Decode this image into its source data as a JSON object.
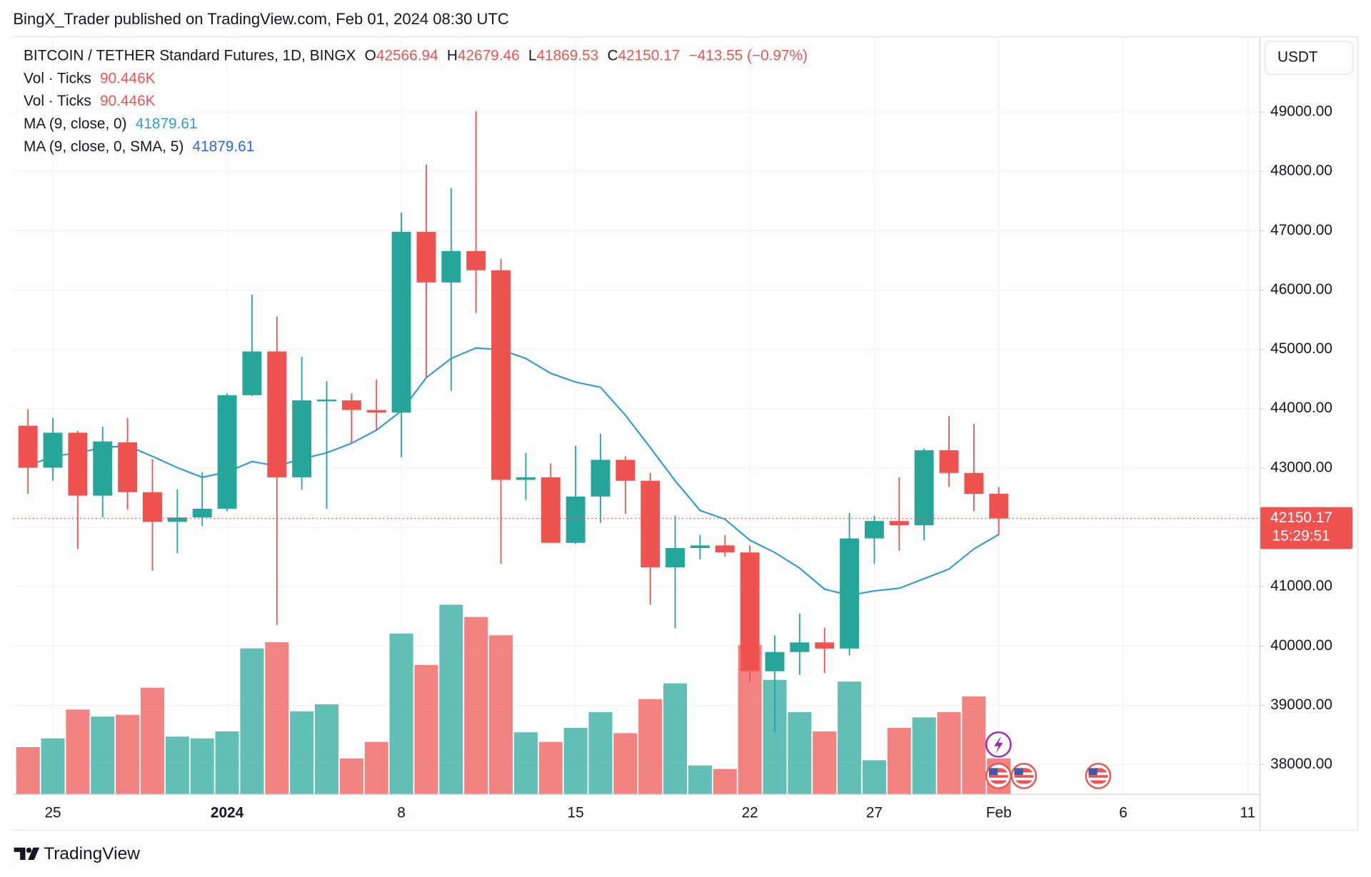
{
  "chart_data": {
    "type": "candlestick",
    "published": "BingX_Trader published on TradingView.com, Feb 01, 2024 08:30 UTC",
    "title": "BITCOIN / TETHER Standard Futures, 1D, BINGX",
    "ohlc_letters": [
      "O",
      "H",
      "L",
      "C"
    ],
    "change": "−413.55 (−0.97%)",
    "currency": "USDT",
    "countdown": "15:29:51",
    "brand": "TradingView",
    "up_color": "#26a69a",
    "down_color": "#ef5350",
    "categories": [
      null,
      "25",
      null,
      null,
      null,
      null,
      null,
      null,
      "2024",
      null,
      null,
      null,
      null,
      null,
      null,
      "8",
      null,
      null,
      null,
      null,
      null,
      null,
      "15",
      null,
      null,
      null,
      null,
      null,
      null,
      "22",
      null,
      null,
      null,
      null,
      "27",
      null,
      null,
      null,
      null,
      "Feb",
      null,
      null,
      null,
      null,
      "6",
      null,
      null,
      null,
      null,
      "11"
    ],
    "open": [
      43713,
      43006,
      43595,
      42534,
      43433,
      42593,
      42093,
      42166,
      42314,
      44228,
      44965,
      42844,
      44125,
      44140,
      43978,
      43934,
      46982,
      46128,
      46658,
      46334,
      42800,
      42844,
      41739,
      42520,
      43138,
      42785,
      41327,
      41651,
      41695,
      41577,
      39574,
      39898,
      40060,
      39957,
      41813,
      42107,
      42034,
      43300,
      42917,
      42566.94,
      null,
      null,
      null,
      null,
      null,
      null,
      null,
      null,
      null,
      null
    ],
    "high": [
      43993,
      43845,
      43624,
      43698,
      43845,
      43153,
      42638,
      42932,
      44258,
      45922,
      45554,
      44876,
      44464,
      44258,
      44493,
      47306,
      48116,
      47719,
      49015,
      46526,
      43256,
      43080,
      43374,
      43580,
      43197,
      42917,
      42196,
      41872,
      41872,
      41695,
      40178,
      40546,
      40310,
      42240,
      42196,
      42844,
      43330,
      43875,
      43742,
      42679.46,
      null,
      null,
      null,
      null,
      null,
      null,
      null,
      null,
      null,
      null
    ],
    "low": [
      42564,
      42785,
      41636,
      42166,
      42299,
      41268,
      41563,
      42019,
      42270,
      44213,
      40355,
      42638,
      42314,
      43403,
      43624,
      43182,
      44523,
      44302,
      45613,
      41386,
      42461,
      41739,
      41720,
      42078,
      42225,
      40694,
      40296,
      41459,
      41504,
      39397,
      38543,
      39515,
      39545,
      39839,
      41386,
      41607,
      41783,
      42682,
      42270,
      41869.53,
      null,
      null,
      null,
      null,
      null,
      null,
      null,
      null,
      null,
      null
    ],
    "close": [
      43006,
      43595,
      42534,
      43448,
      42593,
      42093,
      42166,
      42314,
      44228,
      44965,
      42844,
      44140,
      44155,
      43978,
      43934,
      46982,
      46128,
      46658,
      46334,
      42800,
      42844,
      41739,
      42520,
      43138,
      42785,
      41327,
      41651,
      41695,
      41577,
      39574,
      39898,
      40060,
      39957,
      41813,
      42107,
      42034,
      43300,
      42917,
      42564,
      42150.17,
      null,
      null,
      null,
      null,
      null,
      null,
      null,
      null,
      null,
      null
    ],
    "volume": [
      118.8,
      140.8,
      213.4,
      195.8,
      200.2,
      268.4,
      145.2,
      140.8,
      158.4,
      367.4,
      382.8,
      209,
      226.6,
      90.2,
      132,
      404.8,
      325.6,
      477.4,
      446.6,
      400.4,
      156.2,
      132,
      167.2,
      206.8,
      154,
      239.8,
      279.4,
      72.6,
      63.8,
      376.2,
      288.2,
      206.8,
      158.4,
      283.8,
      85.8,
      167.2,
      193.6,
      206.8,
      246.4,
      90.446,
      null,
      null,
      null,
      null,
      null,
      null,
      null,
      null,
      null,
      null
    ],
    "volume_legends": [
      {
        "name": "Vol · Ticks",
        "value_label": "90.446K"
      },
      {
        "name": "Vol · Ticks",
        "value_label": "90.446K"
      }
    ],
    "series": [
      {
        "name": "MA (9, close, 0)",
        "color": "#2a9fd8",
        "values": [
          43035,
          43197,
          43256,
          43344,
          43374,
          43197,
          43006,
          42844,
          42932,
          43109,
          43035,
          43153,
          43256,
          43418,
          43639,
          43963,
          44523,
          44847,
          45024,
          44994,
          44847,
          44596,
          44449,
          44361,
          43890,
          43344,
          42785,
          42284,
          42137,
          41783,
          41577,
          41312,
          40959,
          40855,
          40929,
          40973,
          41135,
          41297,
          41636,
          41879.61,
          null,
          null,
          null,
          null,
          null,
          null,
          null,
          null,
          null,
          null
        ]
      },
      {
        "name": "MA (9, close, 0, SMA, 5)",
        "color": "#2962ff",
        "values": [
          43035,
          43197,
          43256,
          43344,
          43374,
          43197,
          43006,
          42844,
          42932,
          43109,
          43035,
          43153,
          43256,
          43418,
          43639,
          43963,
          44523,
          44847,
          45024,
          44994,
          44847,
          44596,
          44449,
          44361,
          43890,
          43344,
          42785,
          42284,
          42137,
          41783,
          41577,
          41312,
          40959,
          40855,
          40929,
          40973,
          41135,
          41297,
          41636,
          41879.61,
          null,
          null,
          null,
          null,
          null,
          null,
          null,
          null,
          null,
          null
        ]
      }
    ],
    "ylim": [
      37500,
      50270
    ],
    "yticks": [
      {
        "value": 38000,
        "label": "38000.00"
      },
      {
        "value": 39000,
        "label": "39000.00"
      },
      {
        "value": 40000,
        "label": "40000.00"
      },
      {
        "value": 41000,
        "label": "41000.00"
      },
      {
        "value": 42000,
        "label": "42000.00"
      },
      {
        "value": 43000,
        "label": "43000.00"
      },
      {
        "value": 44000,
        "label": "44000.00"
      },
      {
        "value": 45000,
        "label": "45000.00"
      },
      {
        "value": 46000,
        "label": "46000.00"
      },
      {
        "value": 47000,
        "label": "47000.00"
      },
      {
        "value": 48000,
        "label": "48000.00"
      },
      {
        "value": 49000,
        "label": "49000.00"
      }
    ],
    "grid": true
  }
}
